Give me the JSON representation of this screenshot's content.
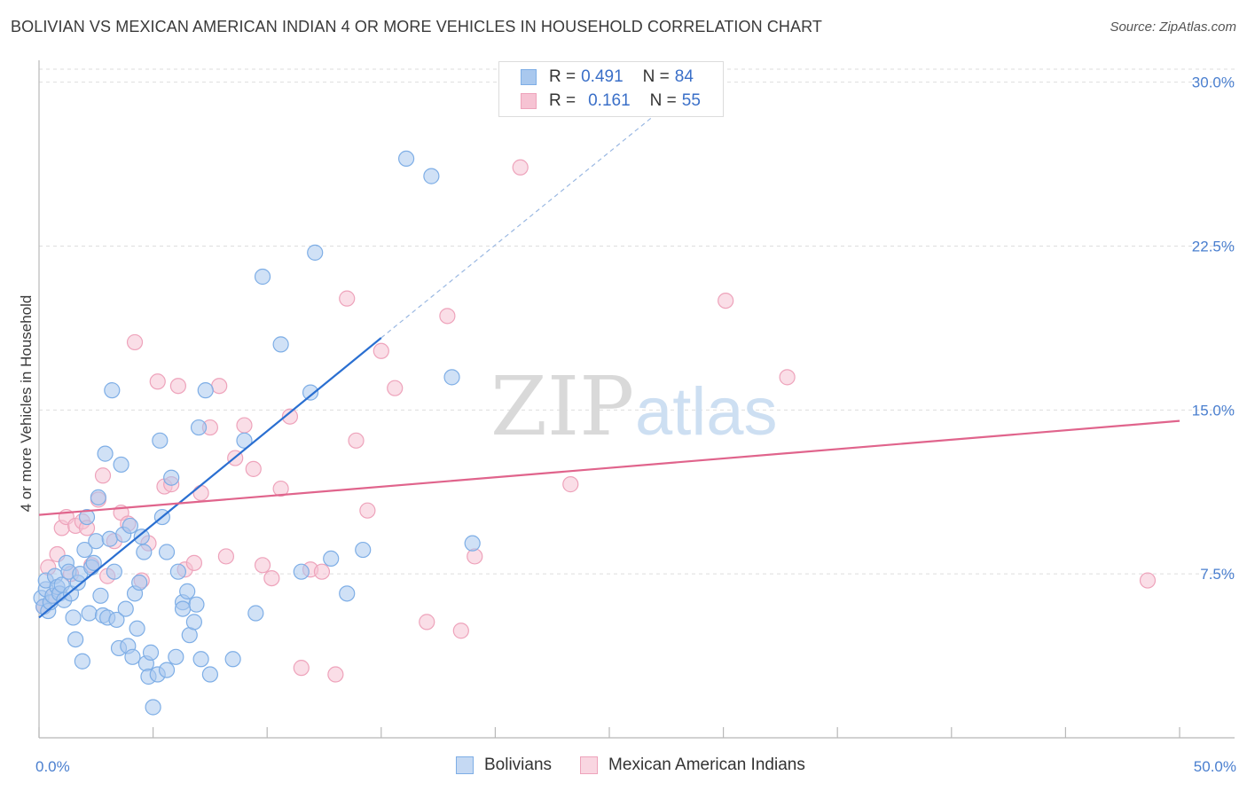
{
  "title": "BOLIVIAN VS MEXICAN AMERICAN INDIAN 4 OR MORE VEHICLES IN HOUSEHOLD CORRELATION CHART",
  "source": "Source: ZipAtlas.com",
  "watermark": {
    "zip": "ZIP",
    "atlas": "atlas"
  },
  "legend": {
    "r_label": "R =",
    "n_label": "N =",
    "series": [
      {
        "r": "0.491",
        "n": "84"
      },
      {
        "r": "0.161",
        "n": "55"
      }
    ]
  },
  "chart_data": {
    "type": "scatter",
    "title": "BOLIVIAN VS MEXICAN AMERICAN INDIAN 4 OR MORE VEHICLES IN HOUSEHOLD CORRELATION CHART",
    "xlabel": "",
    "ylabel": "4 or more Vehicles in Household",
    "xlim": [
      0,
      50
    ],
    "ylim": [
      0,
      31
    ],
    "x_tick_labels": [
      "0.0%",
      "50.0%"
    ],
    "y_ticks": [
      {
        "value": 7.5,
        "label": "7.5%"
      },
      {
        "value": 15.0,
        "label": "15.0%"
      },
      {
        "value": 22.5,
        "label": "22.5%"
      },
      {
        "value": 30.0,
        "label": "30.0%"
      }
    ],
    "grid": true,
    "legend_position": "top-center",
    "series": [
      {
        "name": "Bolivians",
        "color": "#7eaee6",
        "fill": "#a9c8ee",
        "line_color": "#2a6fd1",
        "r": 0.491,
        "n": 84,
        "trend": {
          "x0": 0,
          "y0": 5.5,
          "x1": 15,
          "y1": 18.3,
          "dashed_to_x": 27,
          "dashed_to_y": 28.5
        },
        "points": [
          [
            0.1,
            6.4
          ],
          [
            0.2,
            6.0
          ],
          [
            0.3,
            6.8
          ],
          [
            0.3,
            7.2
          ],
          [
            0.4,
            5.8
          ],
          [
            0.5,
            6.2
          ],
          [
            0.6,
            6.5
          ],
          [
            0.7,
            7.4
          ],
          [
            0.8,
            6.9
          ],
          [
            0.9,
            6.6
          ],
          [
            1.0,
            7.0
          ],
          [
            1.1,
            6.3
          ],
          [
            1.2,
            8.0
          ],
          [
            1.3,
            7.6
          ],
          [
            1.4,
            6.6
          ],
          [
            1.5,
            5.5
          ],
          [
            1.6,
            4.5
          ],
          [
            1.7,
            7.1
          ],
          [
            1.8,
            7.5
          ],
          [
            1.9,
            3.5
          ],
          [
            2.0,
            8.6
          ],
          [
            2.1,
            10.1
          ],
          [
            2.2,
            5.7
          ],
          [
            2.3,
            7.8
          ],
          [
            2.4,
            8.0
          ],
          [
            2.5,
            9.0
          ],
          [
            2.6,
            11.0
          ],
          [
            2.7,
            6.5
          ],
          [
            2.8,
            5.6
          ],
          [
            2.9,
            13.0
          ],
          [
            3.0,
            5.5
          ],
          [
            3.1,
            9.1
          ],
          [
            3.2,
            15.9
          ],
          [
            3.3,
            7.6
          ],
          [
            3.4,
            5.4
          ],
          [
            3.5,
            4.1
          ],
          [
            3.6,
            12.5
          ],
          [
            3.7,
            9.3
          ],
          [
            3.8,
            5.9
          ],
          [
            3.9,
            4.2
          ],
          [
            4.0,
            9.7
          ],
          [
            4.1,
            3.7
          ],
          [
            4.2,
            6.6
          ],
          [
            4.3,
            5.0
          ],
          [
            4.4,
            7.1
          ],
          [
            4.5,
            9.2
          ],
          [
            4.6,
            8.5
          ],
          [
            4.7,
            3.4
          ],
          [
            4.8,
            2.8
          ],
          [
            4.9,
            3.9
          ],
          [
            5.0,
            1.4
          ],
          [
            5.2,
            2.9
          ],
          [
            5.3,
            13.6
          ],
          [
            5.4,
            10.1
          ],
          [
            5.6,
            8.5
          ],
          [
            5.8,
            11.9
          ],
          [
            6.0,
            3.7
          ],
          [
            6.1,
            7.6
          ],
          [
            6.3,
            6.2
          ],
          [
            6.5,
            6.7
          ],
          [
            6.6,
            4.7
          ],
          [
            6.8,
            5.3
          ],
          [
            6.9,
            6.1
          ],
          [
            7.0,
            14.2
          ],
          [
            7.1,
            3.6
          ],
          [
            7.3,
            15.9
          ],
          [
            7.5,
            2.9
          ],
          [
            5.6,
            3.1
          ],
          [
            6.3,
            5.9
          ],
          [
            8.5,
            3.6
          ],
          [
            9.0,
            13.6
          ],
          [
            9.5,
            5.7
          ],
          [
            9.8,
            21.1
          ],
          [
            10.6,
            18.0
          ],
          [
            11.5,
            7.6
          ],
          [
            11.9,
            15.8
          ],
          [
            12.1,
            22.2
          ],
          [
            12.8,
            8.2
          ],
          [
            13.5,
            6.6
          ],
          [
            14.2,
            8.6
          ],
          [
            16.1,
            26.5
          ],
          [
            17.2,
            25.7
          ],
          [
            18.1,
            16.5
          ],
          [
            19.0,
            8.9
          ]
        ]
      },
      {
        "name": "Mexican American Indians",
        "color": "#eea3bb",
        "fill": "#f6c3d3",
        "line_color": "#e0648c",
        "r": 0.161,
        "n": 55,
        "trend": {
          "x0": 0,
          "y0": 10.2,
          "x1": 50,
          "y1": 14.5
        },
        "points": [
          [
            0.2,
            6.0
          ],
          [
            0.4,
            7.8
          ],
          [
            0.6,
            6.5
          ],
          [
            0.8,
            8.4
          ],
          [
            1.0,
            9.6
          ],
          [
            1.2,
            10.1
          ],
          [
            1.4,
            7.5
          ],
          [
            1.6,
            9.7
          ],
          [
            1.9,
            9.9
          ],
          [
            2.1,
            9.6
          ],
          [
            2.3,
            7.9
          ],
          [
            2.6,
            10.9
          ],
          [
            2.8,
            12.0
          ],
          [
            3.0,
            7.4
          ],
          [
            3.3,
            9.0
          ],
          [
            3.6,
            10.3
          ],
          [
            3.9,
            9.8
          ],
          [
            4.2,
            18.1
          ],
          [
            4.5,
            7.2
          ],
          [
            4.8,
            8.9
          ],
          [
            5.2,
            16.3
          ],
          [
            5.5,
            11.5
          ],
          [
            5.8,
            11.6
          ],
          [
            6.1,
            16.1
          ],
          [
            6.4,
            7.7
          ],
          [
            6.8,
            8.0
          ],
          [
            7.1,
            11.2
          ],
          [
            7.5,
            14.2
          ],
          [
            7.9,
            16.1
          ],
          [
            8.2,
            8.3
          ],
          [
            8.6,
            12.8
          ],
          [
            9.0,
            14.3
          ],
          [
            9.4,
            12.3
          ],
          [
            9.8,
            7.9
          ],
          [
            10.2,
            7.3
          ],
          [
            10.6,
            11.4
          ],
          [
            11.0,
            14.7
          ],
          [
            11.5,
            3.2
          ],
          [
            11.9,
            7.7
          ],
          [
            12.4,
            7.6
          ],
          [
            13.0,
            2.9
          ],
          [
            13.5,
            20.1
          ],
          [
            13.9,
            13.6
          ],
          [
            14.4,
            10.4
          ],
          [
            15.0,
            17.7
          ],
          [
            15.6,
            16.0
          ],
          [
            17.0,
            5.3
          ],
          [
            17.9,
            19.3
          ],
          [
            18.5,
            4.9
          ],
          [
            19.1,
            8.3
          ],
          [
            21.1,
            26.1
          ],
          [
            23.3,
            11.6
          ],
          [
            30.1,
            20.0
          ],
          [
            32.8,
            16.5
          ],
          [
            48.6,
            7.2
          ]
        ]
      }
    ]
  }
}
